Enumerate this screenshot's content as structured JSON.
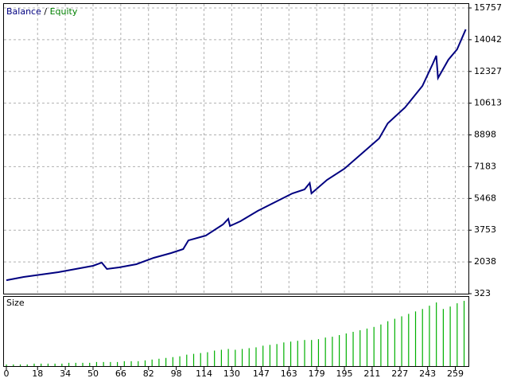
{
  "chart_data": [
    {
      "type": "line",
      "legend_names": [
        "Balance",
        "Equity"
      ],
      "legend_separator": "/",
      "legend_colors": [
        "#000080",
        "#008000"
      ],
      "series": [
        {
          "name": "Balance",
          "color": "#000080",
          "x": [
            0,
            10,
            20,
            30,
            40,
            50,
            55,
            58,
            65,
            75,
            85,
            95,
            102,
            105,
            115,
            125,
            128,
            129,
            135,
            145,
            155,
            165,
            172,
            175,
            176,
            185,
            195,
            205,
            215,
            220,
            230,
            240,
            246,
            248,
            249,
            255,
            260,
            265
          ],
          "values": [
            1050,
            1226,
            1355,
            1484,
            1656,
            1828,
            2000,
            1656,
            1742,
            1914,
            2258,
            2516,
            2730,
            3200,
            3460,
            4063,
            4364,
            3977,
            4235,
            4794,
            5267,
            5740,
            5955,
            6300,
            5740,
            6471,
            7073,
            7890,
            8706,
            9523,
            10383,
            11544,
            12748,
            13178,
            11974,
            12963,
            13522,
            14598
          ]
        }
      ],
      "xlim": [
        0,
        266
      ],
      "xticks": [
        0,
        18,
        34,
        50,
        66,
        82,
        98,
        114,
        130,
        147,
        163,
        179,
        195,
        211,
        227,
        243,
        259
      ],
      "ylim": [
        323,
        15757
      ],
      "yticks": [
        323,
        2038,
        3753,
        5468,
        7183,
        8898,
        10613,
        12327,
        14042,
        15757
      ],
      "grid": true
    },
    {
      "type": "bar",
      "title": "Size",
      "color": "#00b000",
      "x": [
        0,
        4,
        8,
        12,
        16,
        20,
        24,
        28,
        32,
        36,
        40,
        44,
        48,
        52,
        56,
        60,
        64,
        68,
        72,
        76,
        80,
        84,
        88,
        92,
        96,
        100,
        104,
        108,
        112,
        116,
        120,
        124,
        128,
        132,
        136,
        140,
        144,
        148,
        152,
        156,
        160,
        164,
        168,
        172,
        176,
        180,
        184,
        188,
        192,
        196,
        200,
        204,
        208,
        212,
        216,
        220,
        224,
        228,
        232,
        236,
        240,
        244,
        248,
        252,
        256,
        260,
        264
      ],
      "values": [
        2,
        2,
        2,
        2,
        3,
        3,
        3,
        3,
        3,
        4,
        4,
        4,
        4,
        5,
        5,
        5,
        5,
        6,
        6,
        6,
        7,
        8,
        9,
        10,
        11,
        12,
        14,
        15,
        16,
        17,
        19,
        20,
        21,
        20,
        21,
        22,
        23,
        25,
        26,
        27,
        29,
        30,
        31,
        32,
        32,
        33,
        35,
        36,
        38,
        40,
        42,
        44,
        46,
        48,
        51,
        55,
        58,
        61,
        64,
        67,
        70,
        74,
        78,
        70,
        73,
        77,
        80
      ],
      "xlim": [
        0,
        266
      ]
    }
  ]
}
